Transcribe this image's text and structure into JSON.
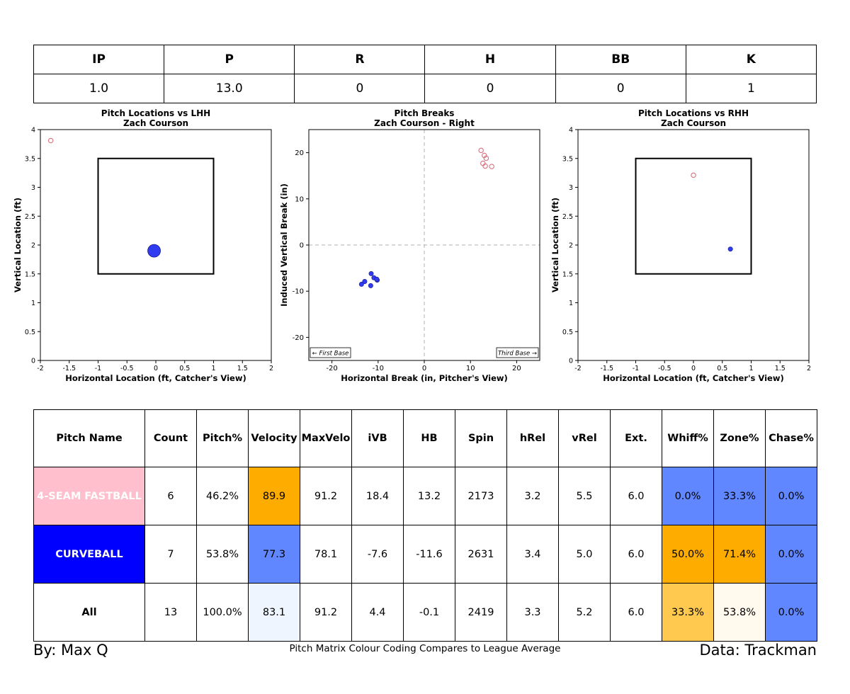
{
  "summary": {
    "headers": [
      "IP",
      "P",
      "R",
      "H",
      "BB",
      "K"
    ],
    "values": [
      "1.0",
      "13.0",
      "0",
      "0",
      "0",
      "1"
    ]
  },
  "chart_data": [
    {
      "type": "scatter",
      "title": "Pitch Locations vs LHH",
      "subtitle": "Zach Courson",
      "xlabel": "Horizontal Location (ft, Catcher's View)",
      "ylabel": "Vertical Location (ft)",
      "xlim": [
        -2,
        2
      ],
      "ylim": [
        0,
        4
      ],
      "xticks": [
        "-2",
        "-1.5",
        "-1",
        "-0.5",
        "0",
        "0.5",
        "1",
        "1.5",
        "2"
      ],
      "yticks": [
        "0",
        "0.5",
        "1",
        "1.5",
        "2",
        "2.5",
        "3",
        "3.5",
        "4"
      ],
      "strike_zone": {
        "x": [
          -1,
          1
        ],
        "y": [
          1.5,
          3.5
        ]
      },
      "grid": false,
      "series": [
        {
          "pitch": "4-Seam Fastball",
          "style": "hollow",
          "color": "#d9707f",
          "points": [
            [
              -1.82,
              3.81
            ]
          ]
        },
        {
          "pitch": "Curveball",
          "style": "filled-large",
          "color": "#2f3cf0",
          "points": [
            [
              -0.03,
              1.9
            ]
          ]
        }
      ]
    },
    {
      "type": "scatter",
      "title": "Pitch Breaks",
      "subtitle": "Zach Courson - Right",
      "xlabel": "Horizontal Break (in, Pitcher's View)",
      "ylabel": "Induced Vertical Break (in)",
      "xlim": [
        -25,
        25
      ],
      "ylim": [
        -25,
        25
      ],
      "xticks": [
        "-20",
        "-10",
        "0",
        "10",
        "20"
      ],
      "yticks": [
        "-20",
        "-10",
        "0",
        "10",
        "20"
      ],
      "reference_lines": "dashed at x=0 and y=0",
      "annotations": [
        "← First Base",
        "Third Base →"
      ],
      "grid": false,
      "series": [
        {
          "pitch": "4-Seam Fastball",
          "style": "hollow",
          "color": "#d9707f",
          "points": [
            [
              12.3,
              20.5
            ],
            [
              13.0,
              19.4
            ],
            [
              13.4,
              18.8
            ],
            [
              12.7,
              17.7
            ],
            [
              13.2,
              17.1
            ],
            [
              14.6,
              17.0
            ]
          ]
        },
        {
          "pitch": "Curveball",
          "style": "filled",
          "color": "#2f3cf0",
          "points": [
            [
              -11.5,
              -6.2
            ],
            [
              -10.9,
              -7.1
            ],
            [
              -10.2,
              -7.6
            ],
            [
              -12.9,
              -7.9
            ],
            [
              -13.6,
              -8.5
            ],
            [
              -11.6,
              -8.8
            ],
            [
              -10.3,
              -7.4
            ]
          ]
        }
      ]
    },
    {
      "type": "scatter",
      "title": "Pitch Locations vs RHH",
      "subtitle": "Zach Courson",
      "xlabel": "Horizontal Location (ft, Catcher's View)",
      "ylabel": "Vertical Location (ft)",
      "xlim": [
        -2,
        2
      ],
      "ylim": [
        0,
        4
      ],
      "xticks": [
        "-2",
        "-1.5",
        "-1",
        "-0.5",
        "0",
        "0.5",
        "1",
        "1.5",
        "2"
      ],
      "yticks": [
        "0",
        "0.5",
        "1",
        "1.5",
        "2",
        "2.5",
        "3",
        "3.5",
        "4"
      ],
      "strike_zone": {
        "x": [
          -1,
          1
        ],
        "y": [
          1.5,
          3.5
        ]
      },
      "grid": false,
      "series": [
        {
          "pitch": "4-Seam Fastball",
          "style": "hollow",
          "color": "#d9707f",
          "points": [
            [
              0.0,
              3.21
            ]
          ]
        },
        {
          "pitch": "Curveball",
          "style": "filled",
          "color": "#2f3cf0",
          "points": [
            [
              0.64,
              1.93
            ]
          ]
        }
      ]
    }
  ],
  "matrix": {
    "headers": [
      "Pitch Name",
      "Count",
      "Pitch%",
      "Velocity",
      "MaxVelo",
      "iVB",
      "HB",
      "Spin",
      "hRel",
      "vRel",
      "Ext.",
      "Whiff%",
      "Zone%",
      "Chase%"
    ],
    "rows": [
      {
        "cells": [
          "4-SEAM FASTBALL",
          "6",
          "46.2%",
          "89.9",
          "91.2",
          "18.4",
          "13.2",
          "2173",
          "3.2",
          "5.5",
          "6.0",
          "0.0%",
          "33.3%",
          "0.0%"
        ],
        "colors": [
          "#ffbfcd",
          "#ffffff",
          "#ffffff",
          "#ffac00",
          "#ffffff",
          "#ffffff",
          "#ffffff",
          "#ffffff",
          "#ffffff",
          "#ffffff",
          "#ffffff",
          "#6087ff",
          "#6087ff",
          "#6087ff"
        ],
        "name_text_color": "#ffffff"
      },
      {
        "cells": [
          "CURVEBALL",
          "7",
          "53.8%",
          "77.3",
          "78.1",
          "-7.6",
          "-11.6",
          "2631",
          "3.4",
          "5.0",
          "6.0",
          "50.0%",
          "71.4%",
          "0.0%"
        ],
        "colors": [
          "#0000ff",
          "#ffffff",
          "#ffffff",
          "#6087ff",
          "#ffffff",
          "#ffffff",
          "#ffffff",
          "#ffffff",
          "#ffffff",
          "#ffffff",
          "#ffffff",
          "#ffac00",
          "#ffac00",
          "#6087ff"
        ],
        "name_text_color": "#ffffff"
      },
      {
        "cells": [
          "All",
          "13",
          "100.0%",
          "83.1",
          "91.2",
          "4.4",
          "-0.1",
          "2419",
          "3.3",
          "5.2",
          "6.0",
          "33.3%",
          "53.8%",
          "0.0%"
        ],
        "colors": [
          "#ffffff",
          "#ffffff",
          "#ffffff",
          "#eef5fe",
          "#ffffff",
          "#ffffff",
          "#ffffff",
          "#ffffff",
          "#ffffff",
          "#ffffff",
          "#ffffff",
          "#ffc94f",
          "#fffaed",
          "#6087ff"
        ],
        "name_text_color": "#000000"
      }
    ]
  },
  "footer": {
    "author": "By: Max Q",
    "note": "Pitch Matrix Colour Coding Compares to League Average",
    "source": "Data: Trackman"
  }
}
